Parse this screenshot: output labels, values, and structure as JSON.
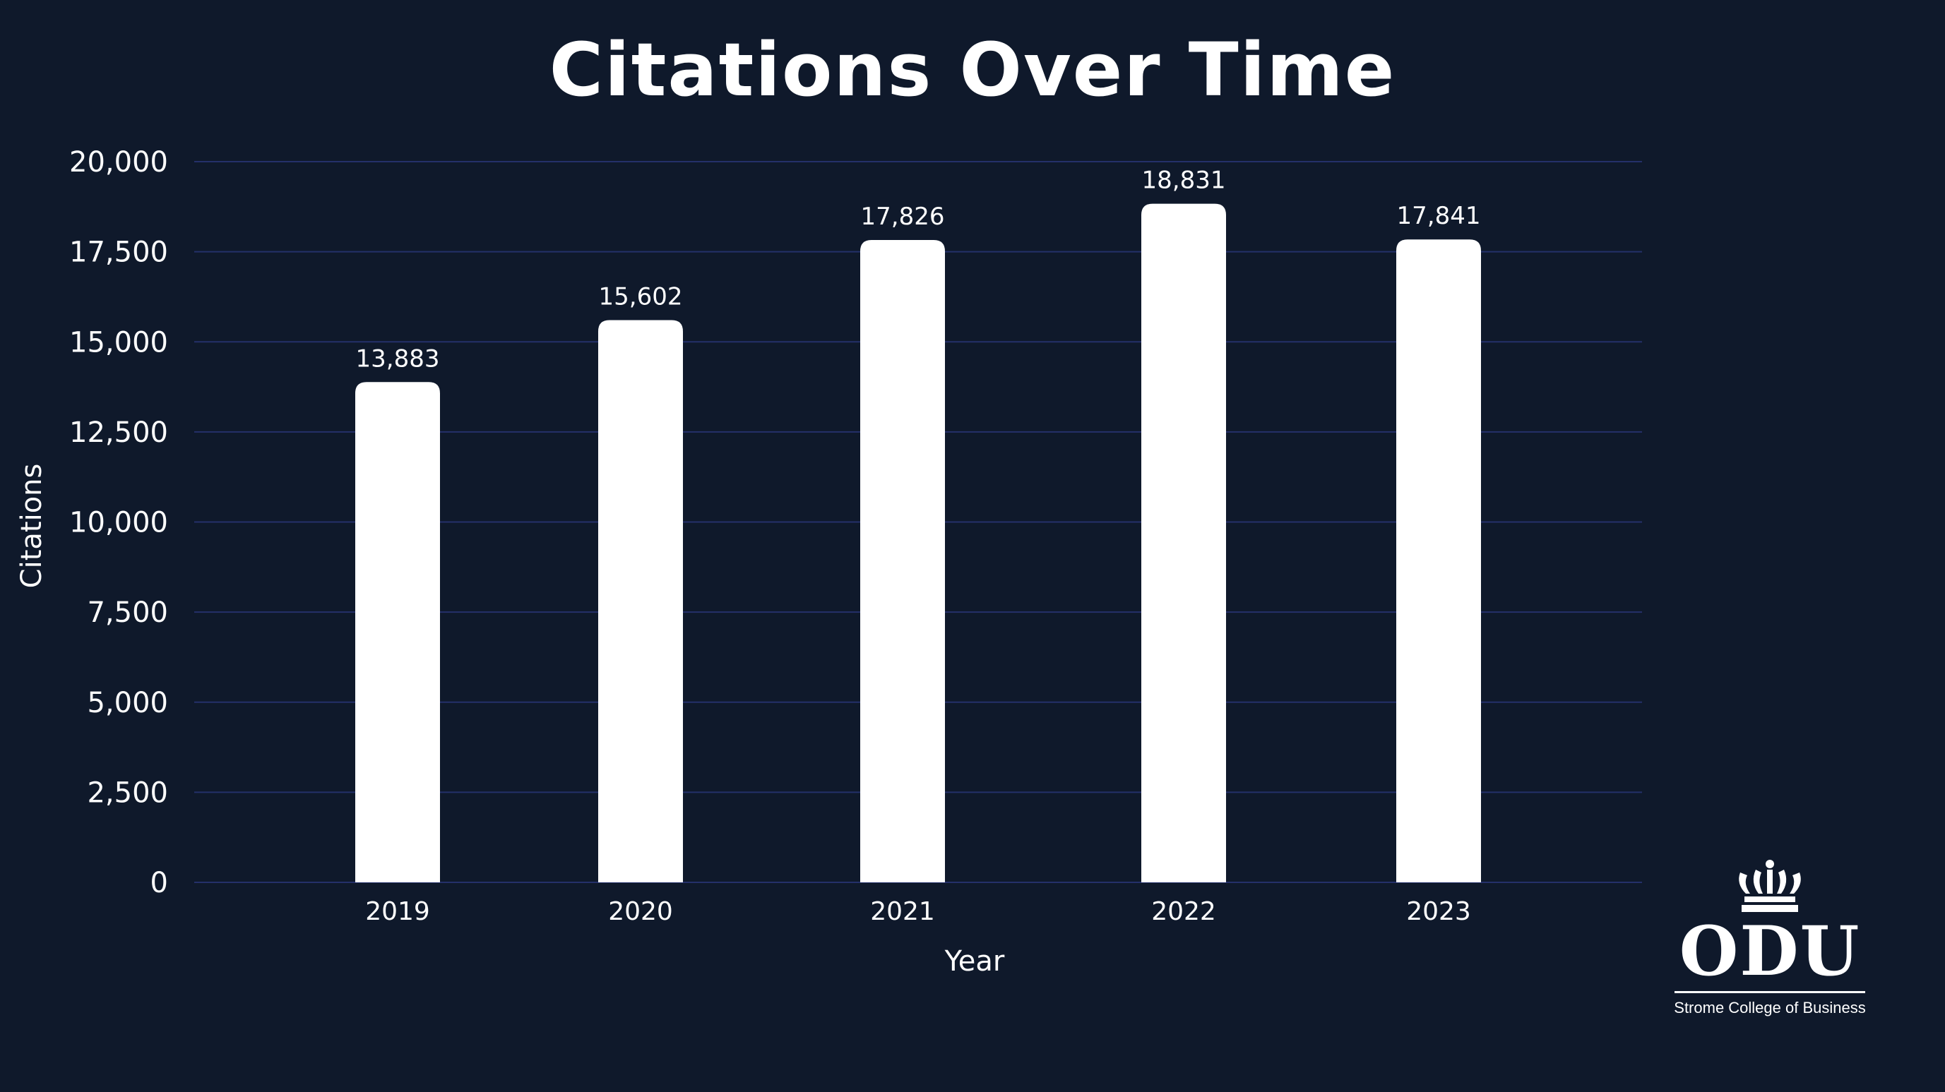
{
  "title": "Citations Over Time",
  "colors": {
    "background": "#0f192b",
    "bar": "#ffffff",
    "grid": "#24306a",
    "text": "#ffffff"
  },
  "chart_data": {
    "type": "bar",
    "title": "Citations Over Time",
    "xlabel": "Year",
    "ylabel": "Citations",
    "categories": [
      "2019",
      "2020",
      "2021",
      "2022",
      "2023"
    ],
    "values": [
      13883,
      15602,
      17826,
      18831,
      17841
    ],
    "value_labels": [
      "13,883",
      "15,602",
      "17,826",
      "18,831",
      "17,841"
    ],
    "ylim": [
      0,
      20000
    ],
    "yticks": [
      0,
      2500,
      5000,
      7500,
      10000,
      12500,
      15000,
      17500,
      20000
    ],
    "ytick_labels": [
      "0",
      "2,500",
      "5,000",
      "7,500",
      "10,000",
      "12,500",
      "15,000",
      "17,500",
      "20,000"
    ],
    "grid": true,
    "legend": "none"
  },
  "logo": {
    "icon": "crown-icon",
    "name": "ODU",
    "subtitle": "Strome College of Business"
  }
}
